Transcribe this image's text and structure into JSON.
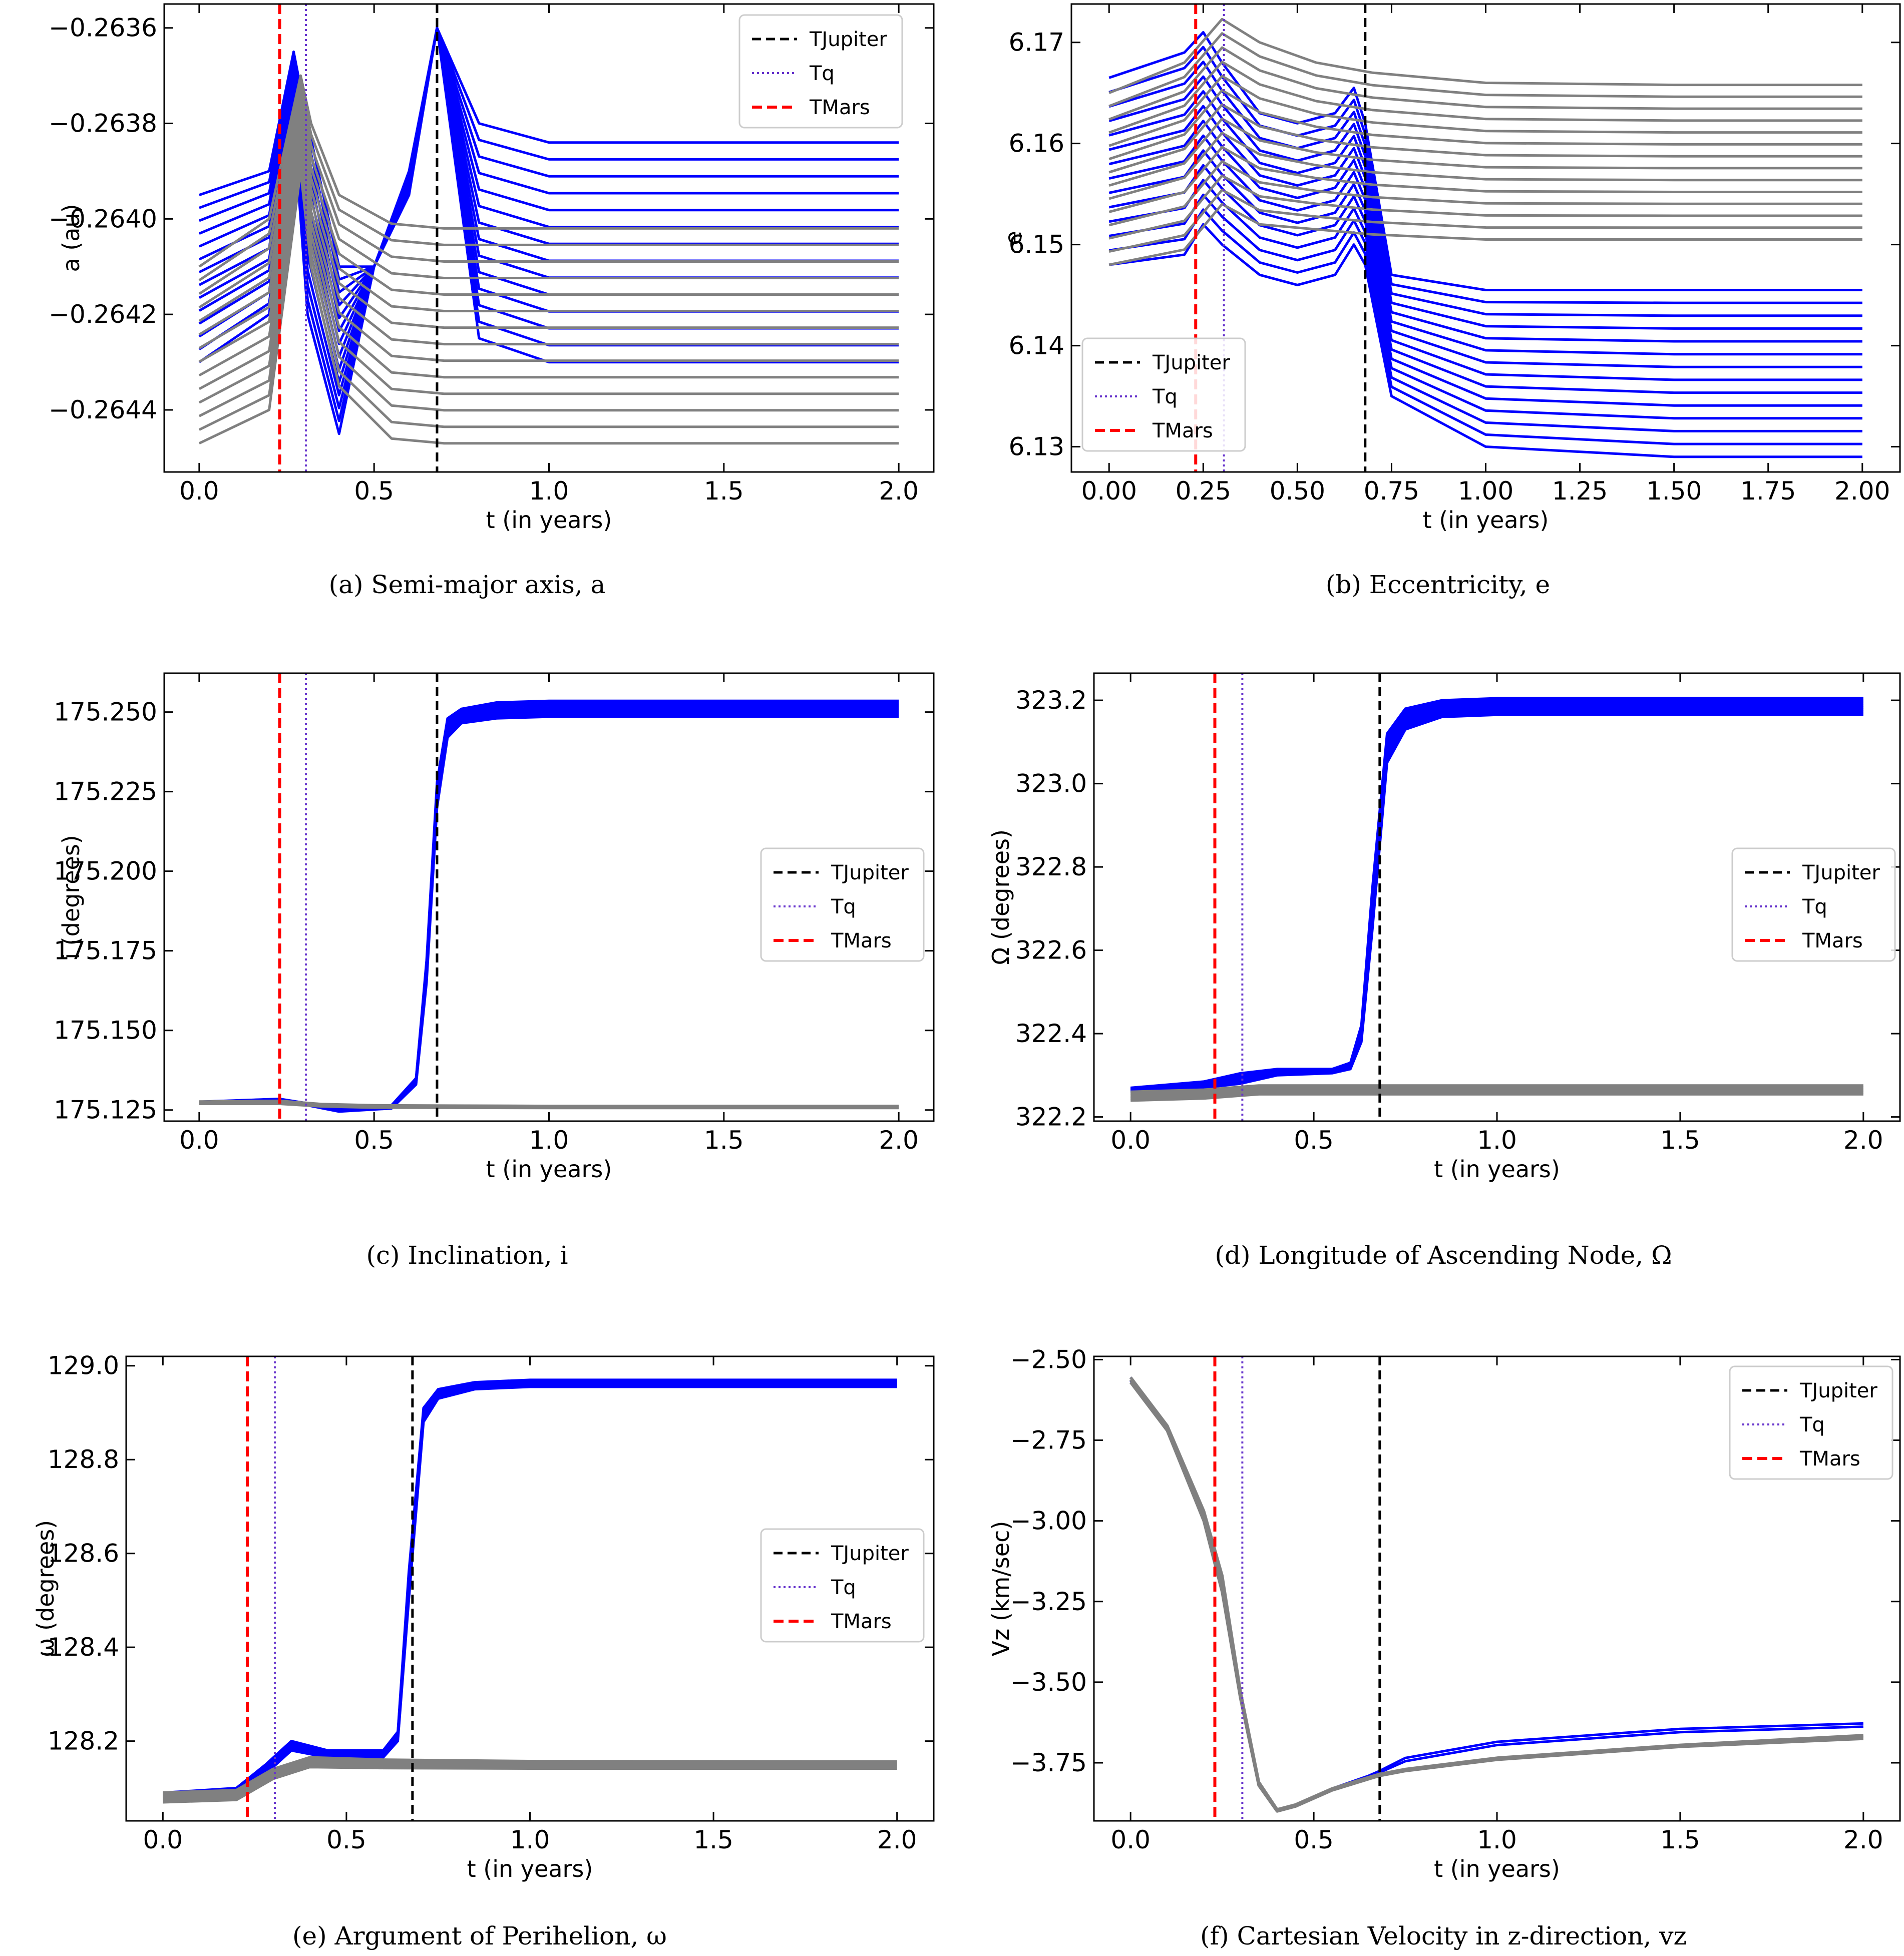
{
  "figure_title": "",
  "colors": {
    "blue": "#0000ff",
    "gray": "#808080",
    "jupiter": "#000000",
    "tq": "#6633cc",
    "mars": "#ff0000"
  },
  "legend": {
    "jupiter": "TJupiter",
    "tq": "Tq",
    "mars": "TMars"
  },
  "chart_data": [
    {
      "type": "line",
      "caption": "(a) Semi-major axis, a",
      "xlabel": "t (in years)",
      "ylabel": "a (au)",
      "xlim": [
        -0.1,
        2.1
      ],
      "ylim": [
        -0.26453,
        -0.26355
      ],
      "xticks": [
        0.0,
        0.5,
        1.0,
        1.5,
        2.0
      ],
      "xtick_labels": [
        "0.0",
        "0.5",
        "1.0",
        "1.5",
        "2.0"
      ],
      "yticks": [
        -0.2644,
        -0.2642,
        -0.264,
        -0.2638,
        -0.2636
      ],
      "ytick_labels": [
        "−0.2644",
        "−0.2642",
        "−0.2640",
        "−0.2638",
        "−0.2636"
      ],
      "legend_position": "top-right",
      "vlines": {
        "mars": 0.23,
        "tq": 0.305,
        "jupiter": 0.68
      },
      "series": [
        {
          "name": "blue clones",
          "color": "blue",
          "width": 5,
          "count": 14,
          "x": [
            0,
            0.2,
            0.27,
            0.31,
            0.4,
            0.5,
            0.6,
            0.68,
            0.8,
            1.0,
            1.5,
            2.0
          ],
          "lo": [
            -0.2643,
            -0.2642,
            -0.2638,
            -0.2642,
            -0.26445,
            -0.2641,
            -0.26395,
            -0.2636,
            -0.26425,
            -0.2643,
            -0.2643,
            -0.2643
          ],
          "hi": [
            -0.26395,
            -0.2639,
            -0.26365,
            -0.2638,
            -0.2641,
            -0.2641,
            -0.2639,
            -0.2636,
            -0.2638,
            -0.26384,
            -0.26384,
            -0.26384
          ]
        },
        {
          "name": "gray clones",
          "color": "gray",
          "width": 5,
          "count": 14,
          "x": [
            0,
            0.2,
            0.29,
            0.32,
            0.4,
            0.55,
            0.7,
            1.0,
            1.5,
            2.0
          ],
          "lo": [
            -0.26447,
            -0.2644,
            -0.2639,
            -0.2641,
            -0.26435,
            -0.26446,
            -0.26447,
            -0.26447,
            -0.26447,
            -0.26447
          ],
          "hi": [
            -0.2641,
            -0.264,
            -0.2637,
            -0.2638,
            -0.26395,
            -0.26401,
            -0.26402,
            -0.26402,
            -0.26402,
            -0.26402
          ]
        }
      ]
    },
    {
      "type": "line",
      "caption": "(b) Eccentricity, e",
      "xlabel": "t (in years)",
      "ylabel": "e",
      "xlim": [
        -0.1,
        2.1
      ],
      "ylim": [
        6.1275,
        6.1738
      ],
      "xticks": [
        0.0,
        0.25,
        0.5,
        0.75,
        1.0,
        1.25,
        1.5,
        1.75,
        2.0
      ],
      "xtick_labels": [
        "0.00",
        "0.25",
        "0.50",
        "0.75",
        "1.00",
        "1.25",
        "1.50",
        "1.75",
        "2.00"
      ],
      "yticks": [
        6.13,
        6.14,
        6.15,
        6.16,
        6.17
      ],
      "ytick_labels": [
        "6.13",
        "6.14",
        "6.15",
        "6.16",
        "6.17"
      ],
      "legend_position": "lower-left",
      "vlines": {
        "mars": 0.23,
        "tq": 0.305,
        "jupiter": 0.68
      },
      "series": [
        {
          "name": "blue clones",
          "color": "blue",
          "width": 5,
          "count": 14,
          "x": [
            0,
            0.2,
            0.25,
            0.3,
            0.4,
            0.5,
            0.6,
            0.65,
            0.68,
            0.75,
            1.0,
            1.5,
            2.0
          ],
          "lo": [
            6.148,
            6.149,
            6.152,
            6.15,
            6.147,
            6.146,
            6.147,
            6.15,
            6.148,
            6.135,
            6.13,
            6.129,
            6.129
          ],
          "hi": [
            6.1665,
            6.169,
            6.171,
            6.168,
            6.163,
            6.162,
            6.163,
            6.1655,
            6.162,
            6.147,
            6.1455,
            6.1455,
            6.1455
          ]
        },
        {
          "name": "gray clones",
          "color": "gray",
          "width": 5,
          "count": 14,
          "x": [
            0,
            0.2,
            0.3,
            0.4,
            0.55,
            0.7,
            1.0,
            1.5,
            2.0
          ],
          "lo": [
            6.148,
            6.1495,
            6.154,
            6.152,
            6.1515,
            6.151,
            6.1505,
            6.1505,
            6.1505
          ],
          "hi": [
            6.165,
            6.168,
            6.1723,
            6.17,
            6.168,
            6.167,
            6.166,
            6.1658,
            6.1658
          ]
        }
      ]
    },
    {
      "type": "line",
      "caption": "(c) Inclination, i",
      "xlabel": "t (in years)",
      "ylabel": "i (degrees)",
      "xlim": [
        -0.1,
        2.1
      ],
      "ylim": [
        175.1215,
        175.2622
      ],
      "xticks": [
        0.0,
        0.5,
        1.0,
        1.5,
        2.0
      ],
      "xtick_labels": [
        "0.0",
        "0.5",
        "1.0",
        "1.5",
        "2.0"
      ],
      "yticks": [
        175.125,
        175.15,
        175.175,
        175.2,
        175.225,
        175.25
      ],
      "ytick_labels": [
        "175.125",
        "175.150",
        "175.175",
        "175.200",
        "175.225",
        "175.250"
      ],
      "legend_position": "center-right",
      "vlines": {
        "mars": 0.23,
        "tq": 0.305,
        "jupiter": 0.68
      },
      "series": [
        {
          "name": "blue clones",
          "color": "blue",
          "width": 5,
          "count": 8,
          "x": [
            0,
            0.23,
            0.4,
            0.55,
            0.62,
            0.65,
            0.68,
            0.71,
            0.75,
            0.85,
            1.0,
            2.0
          ],
          "lo": [
            175.1273,
            175.1282,
            175.1245,
            175.1255,
            175.133,
            175.165,
            175.22,
            175.242,
            175.2465,
            175.248,
            175.2485,
            175.2485
          ],
          "hi": [
            175.1276,
            175.1285,
            175.1255,
            175.1265,
            175.135,
            175.172,
            175.228,
            175.248,
            175.251,
            175.253,
            175.2535,
            175.2535
          ]
        },
        {
          "name": "gray clones",
          "color": "gray",
          "width": 6,
          "count": 4,
          "x": [
            0,
            0.23,
            0.35,
            0.5,
            1.0,
            2.0
          ],
          "lo": [
            175.127,
            175.127,
            175.1262,
            175.1258,
            175.1257,
            175.1257
          ],
          "hi": [
            175.1276,
            175.1278,
            175.1268,
            175.1264,
            175.1262,
            175.1262
          ]
        }
      ]
    },
    {
      "type": "line",
      "caption": "(d) Longitude of Ascending Node, Ω",
      "xlabel": "t (in years)",
      "ylabel": "Ω (degrees)",
      "xlim": [
        -0.1,
        2.1
      ],
      "ylim": [
        322.19,
        323.265
      ],
      "xticks": [
        0.0,
        0.5,
        1.0,
        1.5,
        2.0
      ],
      "xtick_labels": [
        "0.0",
        "0.5",
        "1.0",
        "1.5",
        "2.0"
      ],
      "yticks": [
        322.2,
        322.4,
        322.6,
        322.8,
        323.0,
        323.2
      ],
      "ytick_labels": [
        "322.2",
        "322.4",
        "322.6",
        "322.8",
        "323.0",
        "323.2"
      ],
      "legend_position": "center-right",
      "vlines": {
        "mars": 0.23,
        "tq": 0.305,
        "jupiter": 0.68
      },
      "series": [
        {
          "name": "blue clones",
          "color": "blue",
          "width": 5,
          "count": 10,
          "x": [
            0,
            0.2,
            0.3,
            0.4,
            0.55,
            0.6,
            0.63,
            0.66,
            0.7,
            0.75,
            0.85,
            1.0,
            2.0
          ],
          "lo": [
            322.26,
            322.27,
            322.28,
            322.3,
            322.305,
            322.315,
            322.38,
            322.65,
            323.05,
            323.13,
            323.16,
            323.165,
            323.165
          ],
          "hi": [
            322.27,
            322.285,
            322.305,
            322.315,
            322.315,
            322.33,
            322.42,
            322.75,
            323.12,
            323.18,
            323.2,
            323.205,
            323.205
          ]
        },
        {
          "name": "gray clones",
          "color": "gray",
          "width": 6,
          "count": 6,
          "x": [
            0,
            0.2,
            0.35,
            0.5,
            1.0,
            2.0
          ],
          "lo": [
            322.24,
            322.245,
            322.255,
            322.255,
            322.255,
            322.255
          ],
          "hi": [
            322.26,
            322.265,
            322.275,
            322.275,
            322.275,
            322.275
          ]
        }
      ]
    },
    {
      "type": "line",
      "caption": "(e) Argument of Perihelion, ω",
      "xlabel": "t (in years)",
      "ylabel": "ω (degrees)",
      "xlim": [
        -0.1,
        2.1
      ],
      "ylim": [
        128.03,
        129.02
      ],
      "xticks": [
        0.0,
        0.5,
        1.0,
        1.5,
        2.0
      ],
      "xtick_labels": [
        "0.0",
        "0.5",
        "1.0",
        "1.5",
        "2.0"
      ],
      "yticks": [
        128.2,
        128.4,
        128.6,
        128.8,
        129.0
      ],
      "ytick_labels": [
        "128.2",
        "128.4",
        "128.6",
        "128.8",
        "129.0"
      ],
      "legend_position": "center-right",
      "vlines": {
        "mars": 0.23,
        "tq": 0.305,
        "jupiter": 0.68
      },
      "series": [
        {
          "name": "blue clones",
          "color": "blue",
          "width": 5,
          "count": 8,
          "x": [
            0,
            0.2,
            0.28,
            0.35,
            0.45,
            0.6,
            0.64,
            0.67,
            0.71,
            0.75,
            0.85,
            1.0,
            2.0
          ],
          "lo": [
            128.08,
            128.085,
            128.13,
            128.18,
            128.165,
            128.165,
            128.2,
            128.5,
            128.88,
            128.93,
            128.95,
            128.955,
            128.955
          ],
          "hi": [
            128.09,
            128.1,
            128.15,
            128.2,
            128.18,
            128.18,
            128.22,
            128.56,
            128.91,
            128.95,
            128.965,
            128.97,
            128.97
          ]
        },
        {
          "name": "gray clones",
          "color": "gray",
          "width": 6,
          "count": 6,
          "x": [
            0,
            0.2,
            0.3,
            0.4,
            0.6,
            1.0,
            2.0
          ],
          "lo": [
            128.07,
            128.075,
            128.12,
            128.145,
            128.143,
            128.142,
            128.142
          ],
          "hi": [
            128.09,
            128.095,
            128.14,
            128.165,
            128.16,
            128.157,
            128.156
          ]
        }
      ]
    },
    {
      "type": "line",
      "caption": "(f) Cartesian Velocity in z-direction, vz",
      "xlabel": "t (in years)",
      "ylabel": "Vz (km/sec)",
      "xlim": [
        -0.1,
        2.1
      ],
      "ylim": [
        -3.93,
        -2.49
      ],
      "xticks": [
        0.0,
        0.5,
        1.0,
        1.5,
        2.0
      ],
      "xtick_labels": [
        "0.0",
        "0.5",
        "1.0",
        "1.5",
        "2.0"
      ],
      "yticks": [
        -3.75,
        -3.5,
        -3.25,
        -3.0,
        -2.75,
        -2.5
      ],
      "ytick_labels": [
        "−3.75",
        "−3.50",
        "−3.25",
        "−3.00",
        "−2.75",
        "−2.50"
      ],
      "legend_position": "top-right",
      "vlines": {
        "mars": 0.23,
        "tq": 0.305,
        "jupiter": 0.68
      },
      "series": [
        {
          "name": "blue clones",
          "color": "blue",
          "width": 5,
          "count": 2,
          "x": [
            0,
            0.1,
            0.2,
            0.25,
            0.3,
            0.35,
            0.4,
            0.45,
            0.55,
            0.65,
            0.68,
            0.75,
            1.0,
            1.5,
            2.0
          ],
          "lo": [
            -2.565,
            -2.72,
            -2.99,
            -3.21,
            -3.55,
            -3.82,
            -3.9,
            -3.885,
            -3.835,
            -3.795,
            -3.78,
            -3.745,
            -3.695,
            -3.655,
            -3.638
          ],
          "hi": [
            -2.555,
            -2.71,
            -2.98,
            -3.18,
            -3.54,
            -3.81,
            -3.895,
            -3.88,
            -3.83,
            -3.79,
            -3.775,
            -3.735,
            -3.685,
            -3.645,
            -3.628
          ]
        },
        {
          "name": "gray clones",
          "color": "gray",
          "width": 6,
          "count": 3,
          "x": [
            0,
            0.1,
            0.2,
            0.25,
            0.3,
            0.35,
            0.4,
            0.45,
            0.55,
            0.65,
            0.68,
            0.75,
            1.0,
            1.5,
            2.0
          ],
          "lo": [
            -2.57,
            -2.72,
            -3.0,
            -3.22,
            -3.55,
            -3.82,
            -3.9,
            -3.885,
            -3.835,
            -3.8,
            -3.79,
            -3.775,
            -3.74,
            -3.7,
            -3.675
          ],
          "hi": [
            -2.555,
            -2.705,
            -2.97,
            -3.17,
            -3.53,
            -3.81,
            -3.895,
            -3.88,
            -3.83,
            -3.795,
            -3.785,
            -3.77,
            -3.735,
            -3.695,
            -3.665
          ]
        }
      ]
    }
  ]
}
